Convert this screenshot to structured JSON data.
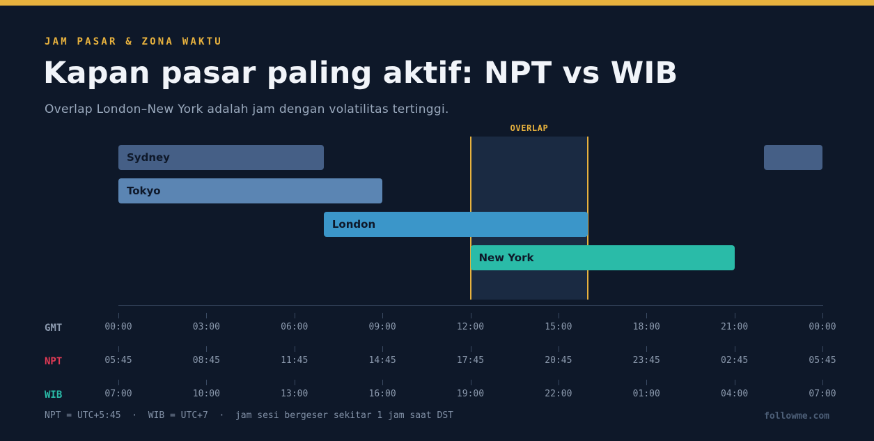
{
  "header": {
    "eyebrow": "JAM PASAR & ZONA WAKTU",
    "title": "Kapan pasar paling aktif: NPT vs WIB",
    "subtitle": "Overlap London–New York adalah jam dengan volatilitas tertinggi."
  },
  "overlap": {
    "label": "OVERLAP",
    "start_gmt": 12,
    "end_gmt": 16,
    "color": "#e8b23e"
  },
  "sessions": [
    {
      "name": "Sydney",
      "start_gmt": 0,
      "end_gmt": 7,
      "extra_start_gmt": 22,
      "color": "#455f86"
    },
    {
      "name": "Tokyo",
      "start_gmt": 0,
      "end_gmt": 9,
      "color": "#5b85b3"
    },
    {
      "name": "London",
      "start_gmt": 7,
      "end_gmt": 16,
      "color": "#3b96c9"
    },
    {
      "name": "New York",
      "start_gmt": 12,
      "end_gmt": 21,
      "color": "#2abba8"
    }
  ],
  "timezones": [
    {
      "label": "GMT",
      "color": "#8d9bb0",
      "times": [
        "00:00",
        "03:00",
        "06:00",
        "09:00",
        "12:00",
        "15:00",
        "18:00",
        "21:00",
        "00:00"
      ]
    },
    {
      "label": "NPT",
      "color": "#e03a55",
      "times": [
        "05:45",
        "08:45",
        "11:45",
        "14:45",
        "17:45",
        "20:45",
        "23:45",
        "02:45",
        "05:45"
      ]
    },
    {
      "label": "WIB",
      "color": "#2abba8",
      "times": [
        "07:00",
        "10:00",
        "13:00",
        "16:00",
        "19:00",
        "22:00",
        "01:00",
        "04:00",
        "07:00"
      ]
    }
  ],
  "footer": {
    "note": "NPT = UTC+5:45  ·  WIB = UTC+7  ·  jam sesi bergeser sekitar 1 jam saat DST",
    "brand": "followme.com"
  }
}
